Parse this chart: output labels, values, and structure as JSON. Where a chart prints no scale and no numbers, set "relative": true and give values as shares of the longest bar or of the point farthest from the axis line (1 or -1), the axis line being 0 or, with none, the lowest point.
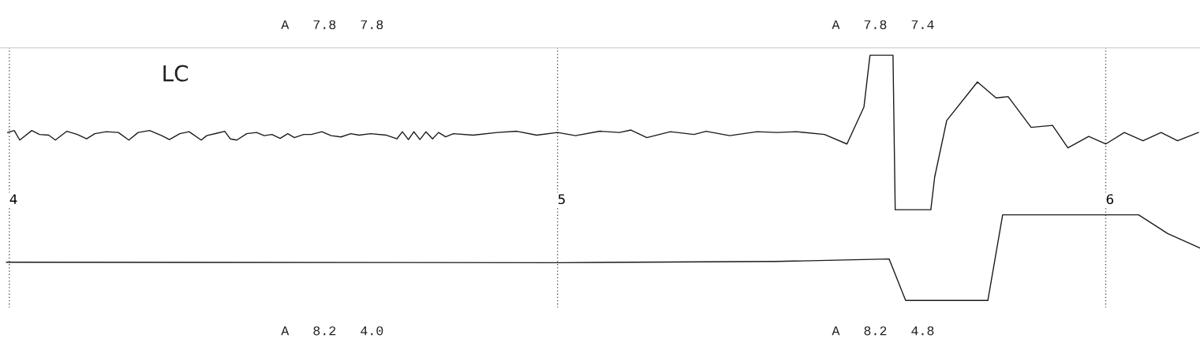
{
  "chart_data": {
    "type": "line",
    "relative": true,
    "annotations": [
      "A   7.8   7.8",
      "LC",
      "A   7.8   7.4",
      "A   8.2   4.0",
      "A   8.2   4.8"
    ],
    "xlim": [
      3.983,
      6.172
    ],
    "xticks": [
      4,
      5,
      6
    ],
    "grid": "x",
    "series": [
      {
        "color": "#1a1a1a",
        "x": [
          3.997,
          4.009,
          4.019,
          4.041,
          4.055,
          4.072,
          4.084,
          4.105,
          4.124,
          4.141,
          4.156,
          4.177,
          4.199,
          4.218,
          4.235,
          4.256,
          4.278,
          4.292,
          4.311,
          4.328,
          4.35,
          4.36,
          4.379,
          4.393,
          4.403,
          4.415,
          4.433,
          4.451,
          4.465,
          4.479,
          4.494,
          4.508,
          4.52,
          4.537,
          4.551,
          4.57,
          4.587,
          4.605,
          4.623,
          4.638,
          4.659,
          4.688,
          4.707,
          4.717,
          4.728,
          4.738,
          4.749,
          4.76,
          4.772,
          4.783,
          4.796,
          4.81,
          4.846,
          4.89,
          4.926,
          4.962,
          5.0,
          5.033,
          5.077,
          5.113,
          5.134,
          5.163,
          5.206,
          5.249,
          5.271,
          5.314,
          5.364,
          5.4,
          5.436,
          5.487,
          5.528,
          5.559,
          5.57,
          5.612,
          5.616,
          5.681,
          5.688,
          5.71,
          5.766,
          5.8,
          5.822,
          5.864,
          5.903,
          5.931,
          5.969,
          6.0,
          6.034,
          6.068,
          6.101,
          6.131,
          6.169
        ],
        "values": [
          0.685,
          0.693,
          0.654,
          0.693,
          0.677,
          0.674,
          0.654,
          0.69,
          0.677,
          0.659,
          0.68,
          0.688,
          0.685,
          0.654,
          0.685,
          0.693,
          0.672,
          0.656,
          0.68,
          0.688,
          0.654,
          0.672,
          0.682,
          0.69,
          0.659,
          0.654,
          0.68,
          0.685,
          0.672,
          0.677,
          0.661,
          0.68,
          0.664,
          0.677,
          0.677,
          0.688,
          0.672,
          0.667,
          0.68,
          0.674,
          0.68,
          0.674,
          0.659,
          0.688,
          0.656,
          0.688,
          0.656,
          0.688,
          0.659,
          0.685,
          0.667,
          0.68,
          0.674,
          0.685,
          0.69,
          0.674,
          0.685,
          0.672,
          0.69,
          0.685,
          0.695,
          0.664,
          0.688,
          0.677,
          0.69,
          0.672,
          0.688,
          0.685,
          0.688,
          0.677,
          0.638,
          0.789,
          1,
          1,
          0.37,
          0.37,
          0.503,
          0.734,
          0.891,
          0.826,
          0.831,
          0.706,
          0.714,
          0.622,
          0.669,
          0.638,
          0.685,
          0.651,
          0.685,
          0.651,
          0.685
        ]
      },
      {
        "color": "#1a1a1a",
        "x": [
          3.995,
          5.0,
          5.4,
          5.605,
          5.635,
          5.785,
          5.812,
          6.06,
          6.113,
          6.172
        ],
        "values": [
          0.156,
          0.154,
          0.159,
          0.169,
          0,
          0,
          0.349,
          0.349,
          0.273,
          0.214
        ]
      }
    ]
  }
}
